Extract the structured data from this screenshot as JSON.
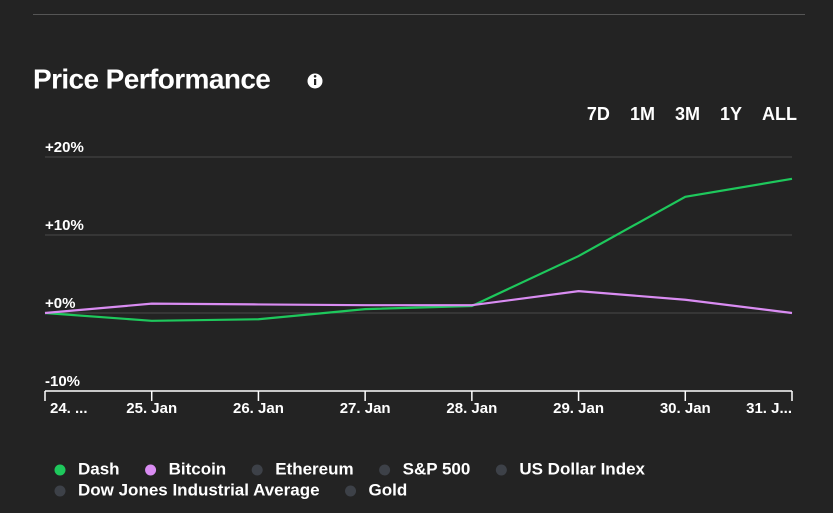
{
  "chart_data": {
    "type": "line",
    "title": "Price Performance",
    "ranges": [
      "7D",
      "1M",
      "3M",
      "1Y",
      "ALL"
    ],
    "active_range": "7D",
    "categories": [
      "24. ...",
      "25. Jan",
      "26. Jan",
      "27. Jan",
      "28. Jan",
      "29. Jan",
      "30. Jan",
      "31. J..."
    ],
    "series": [
      {
        "name": "Dash",
        "color": "#1ec85c",
        "values": [
          0,
          -1.0,
          -0.8,
          0.5,
          0.9,
          7.3,
          14.9,
          17.2
        ]
      },
      {
        "name": "Bitcoin",
        "color": "#d98cf2",
        "values": [
          0,
          1.2,
          1.1,
          1.0,
          1.0,
          2.8,
          1.7,
          0
        ]
      }
    ],
    "inactive_series": [
      "Ethereum",
      "S&P 500",
      "US Dollar Index",
      "Dow Jones Industrial Average",
      "Gold"
    ],
    "ylim": [
      -10,
      20
    ],
    "yticks": [
      {
        "value": 20,
        "label": "+20%"
      },
      {
        "value": 10,
        "label": "+10%"
      },
      {
        "value": 0,
        "label": "+0%"
      },
      {
        "value": -10,
        "label": "-10%"
      }
    ],
    "grid": true
  }
}
